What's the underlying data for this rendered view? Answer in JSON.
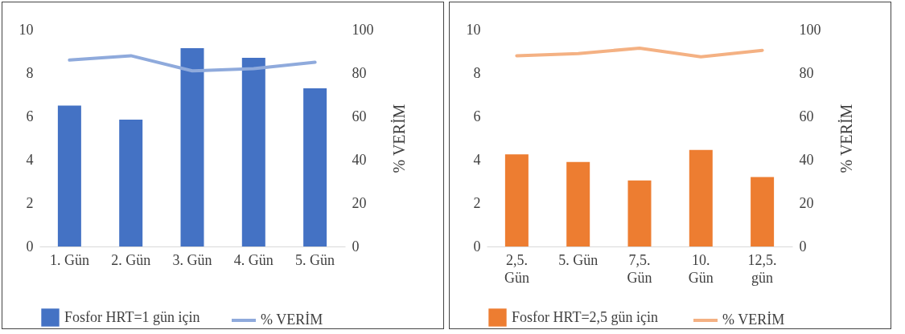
{
  "chart_data": [
    {
      "type": "bar",
      "categories": [
        "1. Gün",
        "2. Gün",
        "3. Gün",
        "4. Gün",
        "5. Gün"
      ],
      "ylim": [
        0,
        10
      ],
      "yticks": [
        0,
        2,
        4,
        6,
        8,
        10
      ],
      "y2label": "% VERİM",
      "y2lim": [
        0,
        100
      ],
      "y2ticks": [
        0,
        20,
        40,
        60,
        80,
        100
      ],
      "legend": "bottom",
      "series": [
        {
          "name": "Fosfor HRT=1 gün için",
          "color": "#4472c4",
          "values": [
            6.5,
            5.85,
            9.15,
            8.7,
            7.3
          ]
        },
        {
          "name": "% VERİM",
          "type": "line",
          "axis": "y2",
          "color": "#8faadc",
          "values": [
            86,
            88,
            81,
            82,
            85
          ]
        }
      ]
    },
    {
      "type": "bar",
      "categories": [
        "2,5.\nGün",
        "5. Gün",
        "7,5.\nGün",
        "10.\nGün",
        "12,5.\ngün"
      ],
      "ylim": [
        0,
        10
      ],
      "yticks": [
        0,
        2,
        4,
        6,
        8,
        10
      ],
      "y2label": "% VERİM",
      "y2lim": [
        0,
        100
      ],
      "y2ticks": [
        0,
        20,
        40,
        60,
        80,
        100
      ],
      "legend": "bottom",
      "series": [
        {
          "name": "Fosfor HRT=2,5 gün için",
          "color": "#ed7d31",
          "values": [
            4.25,
            3.9,
            3.05,
            4.45,
            3.2
          ]
        },
        {
          "name": "% VERİM",
          "type": "line",
          "axis": "y2",
          "color": "#f4b183",
          "values": [
            88,
            89,
            91.5,
            87.5,
            90.5
          ]
        }
      ]
    }
  ]
}
